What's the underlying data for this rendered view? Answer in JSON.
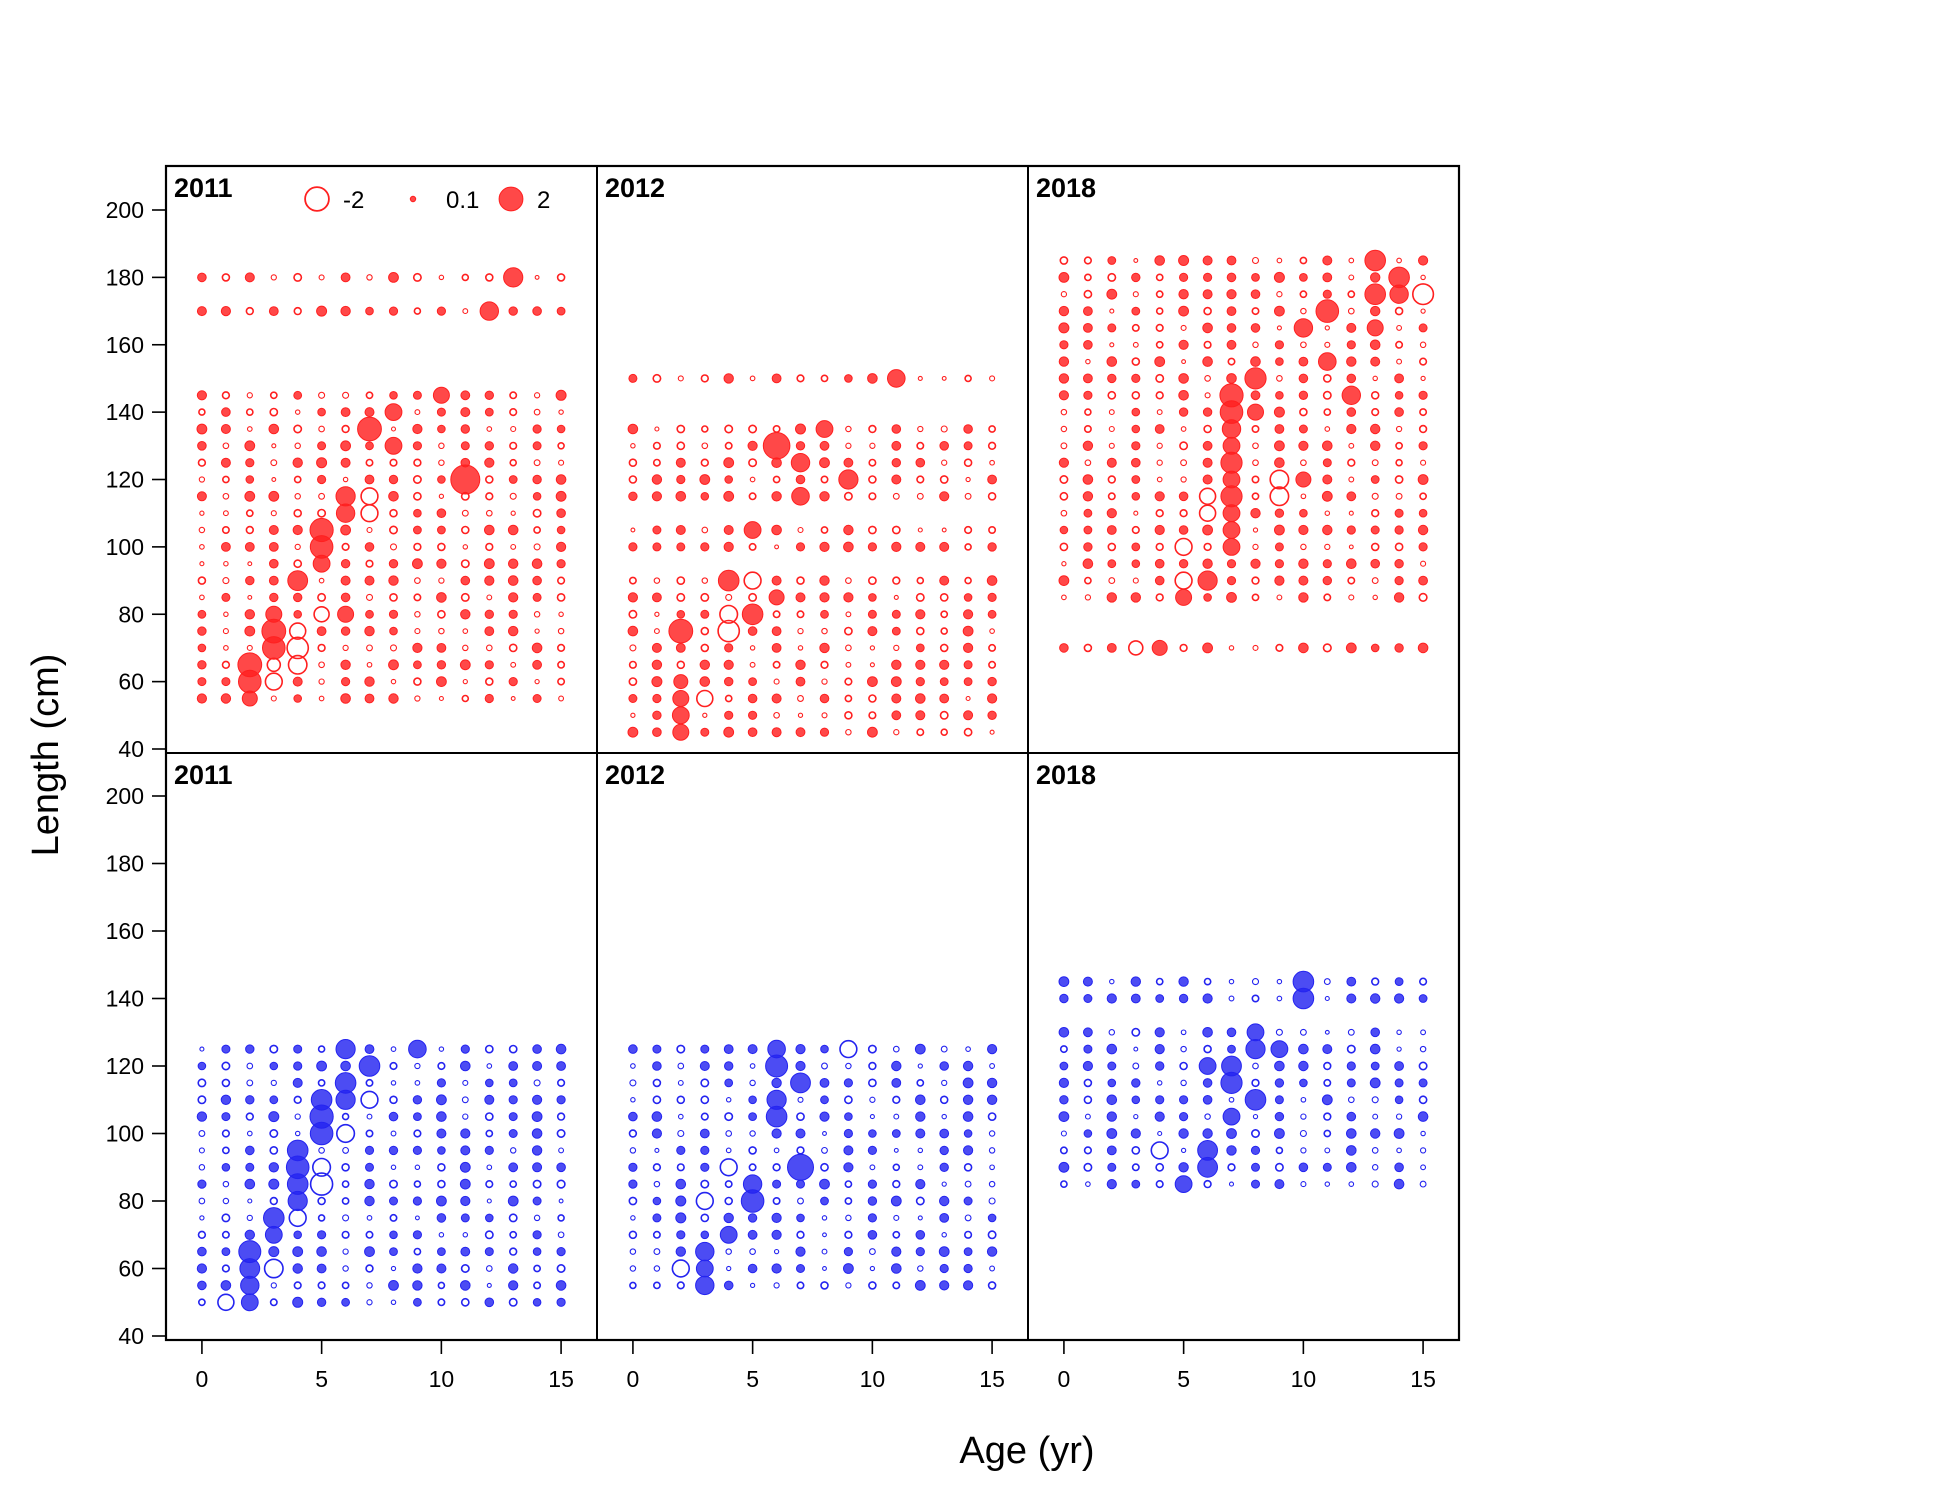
{
  "chart_data": {
    "type": "scatter",
    "subtype": "bubble residuals, 2 rows x 3 columns of panels",
    "xlabel": "Age (yr)",
    "ylabel": "Length (cm)",
    "xlim": [
      -1.5,
      16.5
    ],
    "ylim": [
      40,
      212
    ],
    "xticks": [
      0,
      5,
      10,
      15
    ],
    "yticks": [
      40,
      60,
      80,
      100,
      120,
      140,
      160,
      180,
      200
    ],
    "grid": false,
    "colors": {
      "top_row": "#ff2020",
      "bottom_row": "#2424f0"
    },
    "legend": {
      "placement": "top of top-left panel",
      "entries": [
        {
          "label": "-2",
          "value": -2
        },
        {
          "label": "0.1",
          "value": 0.1
        },
        {
          "label": "2",
          "value": 2
        }
      ]
    },
    "panels": [
      {
        "row": 0,
        "col": 0,
        "year": "2011",
        "color": "top",
        "lens": [
          55,
          60,
          65,
          70,
          75,
          80,
          85,
          90,
          95,
          100,
          105,
          110,
          115,
          120,
          125,
          130,
          135,
          140,
          145,
          170,
          180
        ],
        "hot": [
          [
            2,
            55,
            0.8
          ],
          [
            2,
            60,
            1.8
          ],
          [
            2,
            65,
            2.0
          ],
          [
            3,
            60,
            -1.0
          ],
          [
            3,
            65,
            -0.6
          ],
          [
            3,
            70,
            1.8
          ],
          [
            3,
            75,
            2.0
          ],
          [
            3,
            80,
            0.9
          ],
          [
            4,
            65,
            -1.2
          ],
          [
            4,
            70,
            -1.6
          ],
          [
            4,
            75,
            -0.9
          ],
          [
            4,
            90,
            1.4
          ],
          [
            5,
            80,
            -0.8
          ],
          [
            5,
            95,
            1.0
          ],
          [
            5,
            100,
            1.8
          ],
          [
            5,
            105,
            1.9
          ],
          [
            6,
            80,
            0.9
          ],
          [
            6,
            110,
            1.2
          ],
          [
            6,
            115,
            1.3
          ],
          [
            7,
            110,
            -1.0
          ],
          [
            7,
            115,
            -1.0
          ],
          [
            7,
            135,
            2.0
          ],
          [
            8,
            130,
            1.0
          ],
          [
            8,
            140,
            1.0
          ],
          [
            10,
            145,
            0.9
          ],
          [
            11,
            120,
            3.0
          ],
          [
            12,
            170,
            1.2
          ],
          [
            13,
            180,
            1.3
          ]
        ]
      },
      {
        "row": 0,
        "col": 1,
        "year": "2012",
        "color": "top",
        "lens": [
          45,
          50,
          55,
          60,
          65,
          70,
          75,
          80,
          85,
          90,
          100,
          105,
          115,
          120,
          125,
          130,
          135,
          150
        ],
        "hot": [
          [
            2,
            45,
            0.9
          ],
          [
            2,
            50,
            1.0
          ],
          [
            2,
            55,
            0.9
          ],
          [
            2,
            60,
            0.7
          ],
          [
            2,
            75,
            2.0
          ],
          [
            3,
            55,
            -0.9
          ],
          [
            4,
            75,
            -1.6
          ],
          [
            4,
            80,
            -1.1
          ],
          [
            4,
            90,
            1.5
          ],
          [
            5,
            80,
            1.5
          ],
          [
            5,
            90,
            -1.0
          ],
          [
            5,
            105,
            1.0
          ],
          [
            6,
            85,
            0.8
          ],
          [
            6,
            130,
            2.5
          ],
          [
            7,
            115,
            1.1
          ],
          [
            7,
            125,
            1.2
          ],
          [
            8,
            135,
            1.0
          ],
          [
            9,
            120,
            1.3
          ],
          [
            11,
            150,
            1.1
          ]
        ]
      },
      {
        "row": 0,
        "col": 2,
        "year": "2018",
        "color": "top",
        "lens": [
          70,
          85,
          90,
          95,
          100,
          105,
          110,
          115,
          120,
          125,
          130,
          135,
          140,
          145,
          150,
          155,
          160,
          165,
          170,
          175,
          180,
          185
        ],
        "hot": [
          [
            3,
            70,
            -0.7
          ],
          [
            4,
            70,
            0.8
          ],
          [
            5,
            85,
            0.9
          ],
          [
            5,
            90,
            -1.0
          ],
          [
            5,
            100,
            -1.0
          ],
          [
            6,
            90,
            1.3
          ],
          [
            6,
            110,
            -0.9
          ],
          [
            6,
            115,
            -0.9
          ],
          [
            7,
            100,
            1.0
          ],
          [
            7,
            105,
            1.0
          ],
          [
            7,
            110,
            1.0
          ],
          [
            7,
            115,
            1.6
          ],
          [
            7,
            120,
            1.0
          ],
          [
            7,
            125,
            1.6
          ],
          [
            7,
            130,
            1.0
          ],
          [
            7,
            135,
            1.2
          ],
          [
            7,
            140,
            1.8
          ],
          [
            7,
            145,
            1.9
          ],
          [
            8,
            140,
            0.9
          ],
          [
            8,
            150,
            1.6
          ],
          [
            9,
            115,
            -1.2
          ],
          [
            9,
            120,
            -1.2
          ],
          [
            10,
            120,
            0.8
          ],
          [
            10,
            165,
            1.2
          ],
          [
            11,
            155,
            1.1
          ],
          [
            11,
            170,
            1.8
          ],
          [
            12,
            145,
            1.2
          ],
          [
            13,
            165,
            0.9
          ],
          [
            13,
            175,
            1.5
          ],
          [
            13,
            185,
            1.5
          ],
          [
            14,
            175,
            1.2
          ],
          [
            14,
            180,
            1.5
          ],
          [
            15,
            175,
            -1.5
          ]
        ]
      },
      {
        "row": 1,
        "col": 0,
        "year": "2011",
        "color": "bottom",
        "lens": [
          50,
          55,
          60,
          65,
          70,
          75,
          80,
          85,
          90,
          95,
          100,
          105,
          110,
          115,
          120,
          125
        ],
        "hot": [
          [
            1,
            50,
            -0.9
          ],
          [
            2,
            50,
            1.0
          ],
          [
            2,
            55,
            1.2
          ],
          [
            2,
            60,
            1.4
          ],
          [
            2,
            65,
            1.7
          ],
          [
            3,
            60,
            -1.2
          ],
          [
            3,
            70,
            1.0
          ],
          [
            3,
            75,
            1.5
          ],
          [
            4,
            75,
            -1.0
          ],
          [
            4,
            80,
            1.3
          ],
          [
            4,
            85,
            1.5
          ],
          [
            4,
            90,
            1.8
          ],
          [
            4,
            95,
            1.5
          ],
          [
            5,
            85,
            -1.7
          ],
          [
            5,
            90,
            -1.1
          ],
          [
            5,
            100,
            1.8
          ],
          [
            5,
            105,
            1.9
          ],
          [
            5,
            110,
            1.5
          ],
          [
            6,
            100,
            -1.1
          ],
          [
            6,
            110,
            1.3
          ],
          [
            6,
            115,
            1.5
          ],
          [
            6,
            125,
            1.3
          ],
          [
            7,
            110,
            -1.0
          ],
          [
            7,
            120,
            1.5
          ],
          [
            9,
            125,
            1.1
          ]
        ]
      },
      {
        "row": 1,
        "col": 1,
        "year": "2012",
        "color": "bottom",
        "lens": [
          55,
          60,
          65,
          70,
          75,
          80,
          85,
          90,
          95,
          100,
          105,
          110,
          115,
          120,
          125
        ],
        "hot": [
          [
            2,
            60,
            -1.0
          ],
          [
            3,
            55,
            1.2
          ],
          [
            3,
            60,
            1.0
          ],
          [
            3,
            65,
            1.2
          ],
          [
            3,
            80,
            -1.0
          ],
          [
            4,
            70,
            1.0
          ],
          [
            4,
            90,
            -1.0
          ],
          [
            5,
            80,
            1.8
          ],
          [
            5,
            85,
            1.2
          ],
          [
            6,
            105,
            1.5
          ],
          [
            6,
            110,
            1.3
          ],
          [
            6,
            120,
            1.7
          ],
          [
            6,
            125,
            1.1
          ],
          [
            7,
            90,
            2.4
          ],
          [
            7,
            115,
            1.4
          ],
          [
            9,
            125,
            -1.0
          ]
        ]
      },
      {
        "row": 1,
        "col": 2,
        "year": "2018",
        "color": "bottom",
        "lens": [
          85,
          90,
          95,
          100,
          105,
          110,
          115,
          120,
          125,
          130,
          140,
          145
        ],
        "hot": [
          [
            4,
            95,
            -1.0
          ],
          [
            5,
            85,
            1.0
          ],
          [
            6,
            90,
            1.4
          ],
          [
            6,
            95,
            1.4
          ],
          [
            6,
            120,
            1.0
          ],
          [
            7,
            115,
            1.6
          ],
          [
            7,
            120,
            1.4
          ],
          [
            7,
            105,
            1.0
          ],
          [
            8,
            110,
            1.5
          ],
          [
            8,
            125,
            1.3
          ],
          [
            8,
            130,
            1.0
          ],
          [
            10,
            140,
            1.5
          ],
          [
            10,
            145,
            1.5
          ],
          [
            9,
            125,
            1.0
          ]
        ]
      }
    ]
  }
}
